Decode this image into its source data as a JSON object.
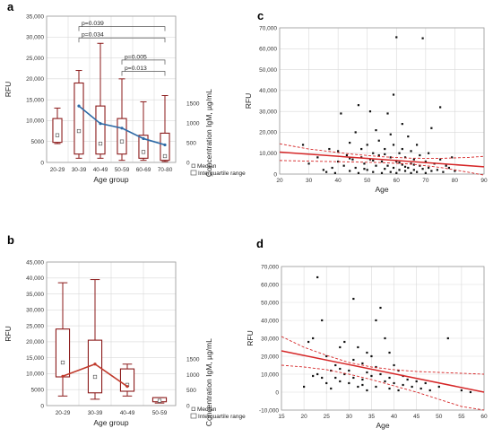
{
  "chart_data": [
    {
      "id": "a",
      "type": "box",
      "panel_letter": "a",
      "xlabel": "Age group",
      "ylabel": "RFU",
      "y2label": "Concentration IgM, µg/mL",
      "ylim": [
        0,
        35000
      ],
      "yticks": [
        0,
        5000,
        10000,
        15000,
        20000,
        25000,
        30000,
        35000
      ],
      "ytick_labels": [
        "0",
        "5000",
        "10,000",
        "15,000",
        "20,000",
        "25,000",
        "30,000",
        "35,000"
      ],
      "y2ticks": [
        0,
        500,
        1000,
        1500
      ],
      "y2tick_labels": [
        "0",
        "500",
        "1000",
        "1500"
      ],
      "y2_rfu_per_unit": 9.4,
      "categories": [
        "20-29",
        "30-39",
        "40-49",
        "50-59",
        "60-69",
        "70-80"
      ],
      "boxes": [
        {
          "min": 4500,
          "q1": 4800,
          "median": 6500,
          "q3": 10500,
          "max": 13000
        },
        {
          "min": 1000,
          "q1": 2000,
          "median": 7500,
          "q3": 19000,
          "max": 22000
        },
        {
          "min": 1000,
          "q1": 2000,
          "median": 4500,
          "q3": 13500,
          "max": 28500
        },
        {
          "min": 500,
          "q1": 2000,
          "median": 5000,
          "q3": 10500,
          "max": 20000
        },
        {
          "min": 500,
          "q1": 1000,
          "median": 2500,
          "q3": 6500,
          "max": 14500
        },
        {
          "min": 200,
          "q1": 500,
          "median": 1500,
          "q3": 7000,
          "max": 16000
        }
      ],
      "concentration_line": {
        "categories_index": [
          1,
          2,
          3,
          4,
          5
        ],
        "values": [
          13500,
          9300,
          8200,
          5700,
          4200
        ]
      },
      "pvalues": [
        {
          "from": 1,
          "to": 5,
          "level": 32500,
          "label": "p=0.039"
        },
        {
          "from": 1,
          "to": 5,
          "level": 29800,
          "label": "p=0.034"
        },
        {
          "from": 3,
          "to": 5,
          "level": 24500,
          "label": "p=0.005"
        },
        {
          "from": 3,
          "to": 5,
          "level": 21800,
          "label": "p=0.013"
        }
      ],
      "legend": [
        "Median",
        "Interquartile range"
      ],
      "box_color": "#8b1a1a",
      "line_color": "#2e6aa6"
    },
    {
      "id": "b",
      "type": "box",
      "panel_letter": "b",
      "xlabel": "Age group",
      "ylabel": "RFU",
      "y2label": "Concentration IgM, µg/mL",
      "ylim": [
        0,
        45000
      ],
      "yticks": [
        0,
        5000,
        10000,
        15000,
        20000,
        25000,
        30000,
        35000,
        40000,
        45000
      ],
      "ytick_labels": [
        "0",
        "5000",
        "10,000",
        "15,000",
        "20,000",
        "25,000",
        "30,000",
        "35,000",
        "40,000",
        "45,000"
      ],
      "y2ticks": [
        0,
        500,
        1000,
        1500
      ],
      "y2tick_labels": [
        "0",
        "500",
        "1000",
        "1500"
      ],
      "y2_rfu_per_unit": 9.7,
      "categories": [
        "20-29",
        "30-39",
        "40-49",
        "50-59"
      ],
      "boxes": [
        {
          "min": 3000,
          "q1": 9000,
          "median": 13500,
          "q3": 24000,
          "max": 38500
        },
        {
          "min": 2000,
          "q1": 4000,
          "median": 9000,
          "q3": 20500,
          "max": 39500
        },
        {
          "min": 3000,
          "q1": 4500,
          "median": 6500,
          "q3": 11500,
          "max": 13000
        },
        {
          "min": 800,
          "q1": 1200,
          "median": 1500,
          "q3": 2500,
          "max": 2500
        }
      ],
      "concentration_line": {
        "categories_index": [
          0,
          1,
          2
        ],
        "values": [
          9200,
          13000,
          6000
        ]
      },
      "legend": [
        "Median",
        "Interquartile range"
      ],
      "box_color": "#8b1a1a",
      "line_color": "#c0392b"
    },
    {
      "id": "c",
      "type": "scatter",
      "panel_letter": "c",
      "xlabel": "Age",
      "ylabel": "RFU",
      "xlim": [
        20,
        90
      ],
      "ylim": [
        0,
        70000
      ],
      "xticks": [
        20,
        30,
        40,
        50,
        60,
        70,
        80,
        90
      ],
      "yticks": [
        0,
        10000,
        20000,
        30000,
        40000,
        50000,
        60000,
        70000
      ],
      "ytick_labels": [
        "0",
        "10,000",
        "20,000",
        "30,000",
        "40,000",
        "50,000",
        "60,000",
        "70,000"
      ],
      "fit": {
        "x": [
          20,
          90
        ],
        "y": [
          10500,
          3500
        ]
      },
      "ci_upper": {
        "x": [
          20,
          30,
          45,
          55,
          65,
          75,
          85,
          90
        ],
        "y": [
          14500,
          12000,
          9500,
          8300,
          7600,
          7500,
          8000,
          8500
        ]
      },
      "ci_lower": {
        "x": [
          20,
          30,
          45,
          55,
          65,
          75,
          85,
          90
        ],
        "y": [
          6500,
          6200,
          5800,
          5500,
          4800,
          3200,
          800,
          -500
        ]
      },
      "points": [
        [
          28,
          14000
        ],
        [
          30,
          5000
        ],
        [
          33,
          8000
        ],
        [
          35,
          2000
        ],
        [
          36,
          1000
        ],
        [
          37,
          12000
        ],
        [
          38,
          3000
        ],
        [
          39,
          500
        ],
        [
          40,
          6000
        ],
        [
          40,
          11000
        ],
        [
          41,
          29000
        ],
        [
          42,
          4000
        ],
        [
          43,
          9000
        ],
        [
          44,
          1500
        ],
        [
          44,
          15000
        ],
        [
          45,
          7000
        ],
        [
          46,
          20000
        ],
        [
          46,
          3000
        ],
        [
          47,
          33000
        ],
        [
          47,
          500
        ],
        [
          48,
          12000
        ],
        [
          48,
          8000
        ],
        [
          49,
          5000
        ],
        [
          50,
          2000
        ],
        [
          50,
          14000
        ],
        [
          51,
          30000
        ],
        [
          51,
          7000
        ],
        [
          52,
          1000
        ],
        [
          52,
          10000
        ],
        [
          53,
          21000
        ],
        [
          53,
          4000
        ],
        [
          54,
          16000
        ],
        [
          54,
          9000
        ],
        [
          55,
          500
        ],
        [
          55,
          6000
        ],
        [
          56,
          2500
        ],
        [
          56,
          12000
        ],
        [
          57,
          29000
        ],
        [
          57,
          4000
        ],
        [
          58,
          19000
        ],
        [
          58,
          1000
        ],
        [
          58,
          8000
        ],
        [
          59,
          38000
        ],
        [
          59,
          3000
        ],
        [
          59,
          14000
        ],
        [
          60,
          65500
        ],
        [
          60,
          500
        ],
        [
          60,
          6000
        ],
        [
          61,
          10000
        ],
        [
          61,
          2000
        ],
        [
          62,
          24000
        ],
        [
          62,
          4500
        ],
        [
          62,
          12000
        ],
        [
          63,
          1500
        ],
        [
          63,
          8000
        ],
        [
          64,
          18000
        ],
        [
          64,
          3000
        ],
        [
          65,
          5000
        ],
        [
          65,
          500
        ],
        [
          65,
          11000
        ],
        [
          66,
          2000
        ],
        [
          66,
          7000
        ],
        [
          67,
          14000
        ],
        [
          67,
          1000
        ],
        [
          68,
          4000
        ],
        [
          68,
          9000
        ],
        [
          69,
          65000
        ],
        [
          69,
          2500
        ],
        [
          70,
          6000
        ],
        [
          70,
          500
        ],
        [
          71,
          10000
        ],
        [
          71,
          3000
        ],
        [
          72,
          1500
        ],
        [
          72,
          22000
        ],
        [
          73,
          5000
        ],
        [
          74,
          2000
        ],
        [
          75,
          7000
        ],
        [
          75,
          32000
        ],
        [
          76,
          1000
        ],
        [
          77,
          4000
        ],
        [
          78,
          3000
        ],
        [
          79,
          8000
        ],
        [
          80,
          1500
        ],
        [
          44,
          7500
        ],
        [
          49,
          2500
        ],
        [
          52,
          6500
        ],
        [
          56,
          9500
        ],
        [
          61,
          5500
        ],
        [
          63,
          3500
        ],
        [
          66,
          4500
        ]
      ],
      "fit_color": "#d62728"
    },
    {
      "id": "d",
      "type": "scatter",
      "panel_letter": "d",
      "xlabel": "Age",
      "ylabel": "RFU",
      "xlim": [
        15,
        60
      ],
      "ylim": [
        -10000,
        70000
      ],
      "xticks": [
        15,
        20,
        25,
        30,
        35,
        40,
        45,
        50,
        55,
        60
      ],
      "yticks": [
        -10000,
        0,
        10000,
        20000,
        30000,
        40000,
        50000,
        60000,
        70000
      ],
      "ytick_labels": [
        "-10,000",
        "0",
        "10,000",
        "20,000",
        "30,000",
        "40,000",
        "50,000",
        "60,000",
        "70,000"
      ],
      "fit": {
        "x": [
          15,
          60
        ],
        "y": [
          23000,
          0
        ]
      },
      "ci_upper": {
        "x": [
          15,
          20,
          25,
          30,
          35,
          40,
          45,
          50,
          55,
          60
        ],
        "y": [
          31000,
          25000,
          20500,
          16500,
          14000,
          12500,
          11500,
          11000,
          10500,
          10000
        ]
      },
      "ci_lower": {
        "x": [
          15,
          20,
          25,
          30,
          35,
          40,
          45,
          50,
          55,
          60
        ],
        "y": [
          15000,
          14000,
          12500,
          10000,
          7000,
          3500,
          0,
          -4000,
          -8000,
          -10000
        ]
      },
      "points": [
        [
          20,
          3000
        ],
        [
          21,
          28000
        ],
        [
          22,
          30000
        ],
        [
          22,
          9000
        ],
        [
          23,
          64000
        ],
        [
          23,
          10000
        ],
        [
          24,
          40000
        ],
        [
          24,
          8000
        ],
        [
          25,
          20000
        ],
        [
          25,
          5000
        ],
        [
          26,
          12000
        ],
        [
          26,
          2000
        ],
        [
          27,
          15000
        ],
        [
          27,
          8000
        ],
        [
          28,
          6000
        ],
        [
          28,
          25000
        ],
        [
          29,
          28000
        ],
        [
          29,
          10000
        ],
        [
          30,
          12000
        ],
        [
          30,
          5000
        ],
        [
          31,
          52000
        ],
        [
          31,
          8000
        ],
        [
          32,
          25000
        ],
        [
          32,
          3000
        ],
        [
          33,
          16000
        ],
        [
          33,
          7000
        ],
        [
          34,
          11000
        ],
        [
          34,
          1000
        ],
        [
          35,
          20000
        ],
        [
          35,
          9000
        ],
        [
          36,
          14000
        ],
        [
          36,
          3000
        ],
        [
          37,
          47000
        ],
        [
          37,
          10000
        ],
        [
          38,
          30000
        ],
        [
          38,
          6000
        ],
        [
          39,
          22000
        ],
        [
          39,
          2000
        ],
        [
          40,
          15000
        ],
        [
          40,
          5000
        ],
        [
          41,
          12000
        ],
        [
          41,
          1000
        ],
        [
          42,
          9000
        ],
        [
          42,
          4000
        ],
        [
          43,
          7000
        ],
        [
          44,
          3000
        ],
        [
          45,
          6000
        ],
        [
          46,
          2000
        ],
        [
          47,
          5000
        ],
        [
          48,
          1000
        ],
        [
          50,
          3000
        ],
        [
          52,
          30000
        ],
        [
          55,
          1000
        ],
        [
          57,
          0
        ],
        [
          36,
          40000
        ],
        [
          34,
          22000
        ],
        [
          31,
          18000
        ],
        [
          28,
          13000
        ],
        [
          33,
          4000
        ],
        [
          39,
          8000
        ]
      ],
      "fit_color": "#d62728"
    }
  ]
}
